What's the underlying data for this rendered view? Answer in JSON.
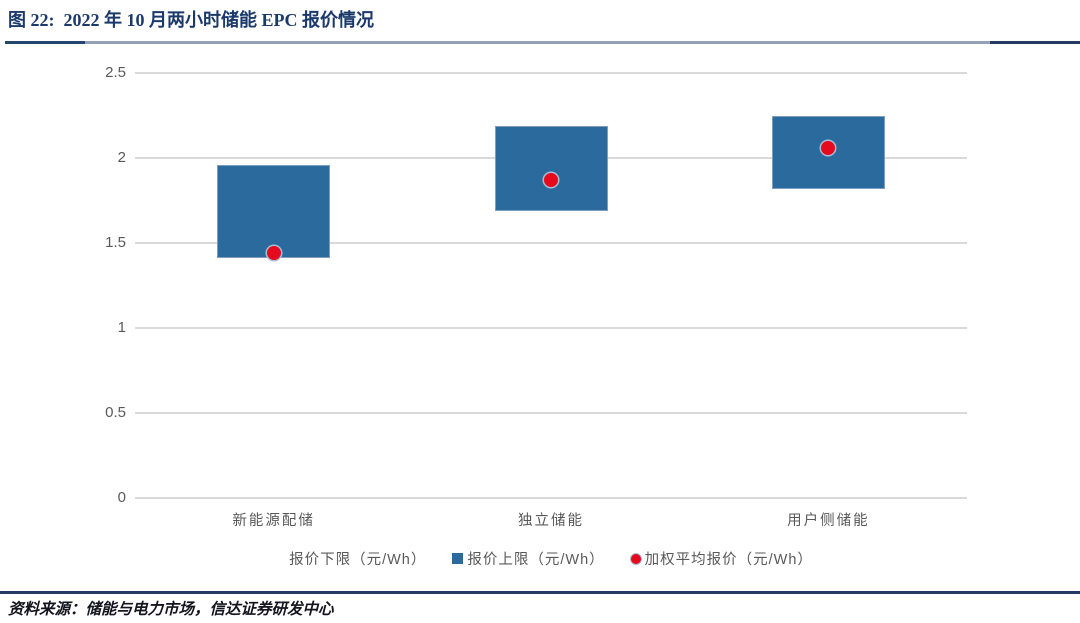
{
  "page": {
    "title": "图 22:  2022 年 10 月两小时储能 EPC 报价情况",
    "source_text": "资料来源：储能与电力市场，信达证券研发中心"
  },
  "colors": {
    "title_navy": "#1b3a6b",
    "divider_dark": "#24456e",
    "divider_light": "#93a2b8",
    "footer_line_navy": "#243c63",
    "bar_blue": "#2b6a9d",
    "bar_edge": "#7d9cc0",
    "dot_red": "#e50a1e",
    "dot_ring": "#a9bdd6",
    "gridline_gray": "#d9d9d9",
    "axis_text_gray": "#595959"
  },
  "chart_data": {
    "type": "bar",
    "subtype": "floating-range-bars-with-average-point",
    "title": "2022 年 10 月两小时储能 EPC 报价情况",
    "categories": [
      "新能源配储",
      "独立储能",
      "用户侧储能"
    ],
    "series": [
      {
        "name": "报价下限（元/Wh）",
        "role": "lower-bound",
        "values": [
          1.41,
          1.69,
          1.82
        ]
      },
      {
        "name": "报价上限（元/Wh）",
        "role": "upper-bound",
        "values": [
          1.96,
          2.19,
          2.25
        ]
      },
      {
        "name": "加权平均报价（元/Wh）",
        "role": "weighted-average",
        "values": [
          1.44,
          1.87,
          2.06
        ]
      }
    ],
    "ylabel": "",
    "xlabel": "",
    "ylim": [
      0,
      2.5
    ],
    "ytick_interval": 0.5,
    "yticks": [
      "0",
      "0.5",
      "1",
      "1.5",
      "2",
      "2.5"
    ],
    "grid": true,
    "legend_position": "bottom",
    "legend": [
      {
        "label": "报价下限（元/Wh）",
        "marker": "none"
      },
      {
        "label": "报价上限（元/Wh）",
        "marker": "square"
      },
      {
        "label": "加权平均报价（元/Wh）",
        "marker": "circle"
      }
    ]
  }
}
